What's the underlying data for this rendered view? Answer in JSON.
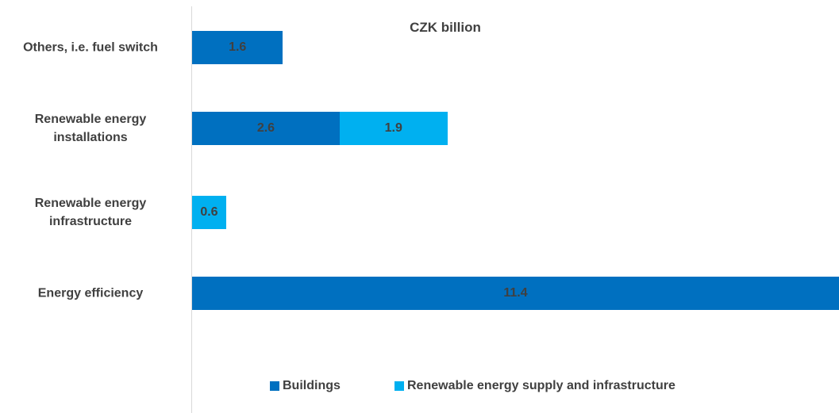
{
  "chart_data": {
    "type": "stacked_barh",
    "title": "CZK billion",
    "categories": [
      "Others, i.e. fuel switch",
      "Renewable energy installations",
      "Renewable energy infrastructure",
      "Energy efficiency"
    ],
    "series": [
      {
        "name": "Buildings",
        "color": "#0070c0",
        "values": [
          1.6,
          2.6,
          null,
          11.4
        ]
      },
      {
        "name": "Renewable energy supply and infrastructure",
        "color": "#00b0f0",
        "values": [
          null,
          1.9,
          0.6,
          null
        ]
      }
    ],
    "legend": "bottom"
  }
}
